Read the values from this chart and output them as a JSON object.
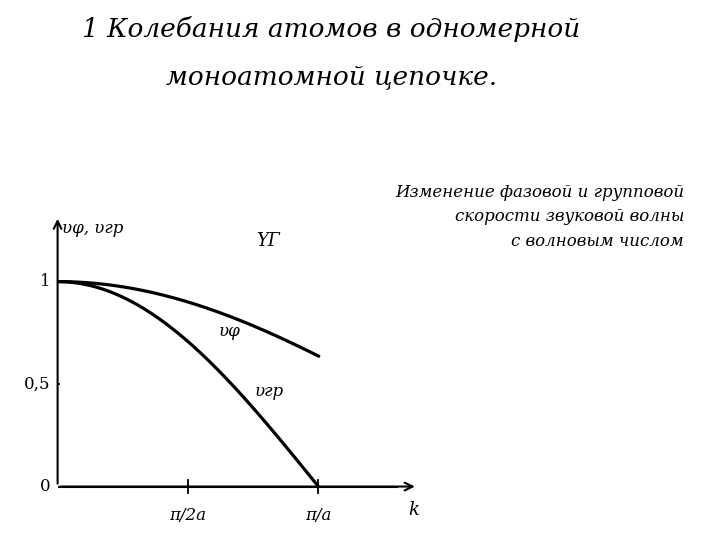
{
  "title_line1": "1 Колебания атомов в одномерной",
  "title_line2": "моноатомной цепочке.",
  "ylabel_text": "υφ, υгр",
  "xlabel_k": "k",
  "label_v0": "ΥГ",
  "label_vphi": "υφ",
  "label_vgr": "υгр",
  "tick_pi2a": "π/2a",
  "tick_pia": "π/a",
  "tick_05": "0,5",
  "tick_1": "1",
  "tick_0": "0",
  "annotation_line1": "Изменение фазовой и групповой",
  "annotation_line2": "скорости звуковой волны",
  "annotation_line3": "с волновым числом",
  "background_color": "#ffffff",
  "line_color": "#000000",
  "title_fontsize": 19,
  "annotation_fontsize": 12
}
